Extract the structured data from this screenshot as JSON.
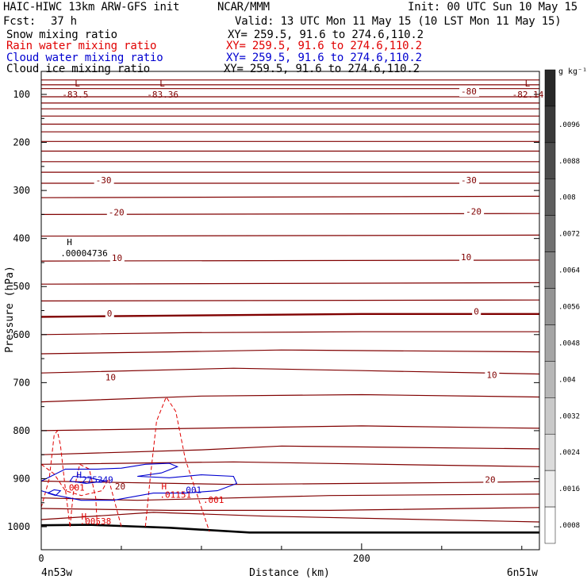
{
  "header": {
    "model": "HAIC-HIWC 13km ARW-GFS init",
    "org": "NCAR/MMM",
    "init": "Init: 00 UTC Sun 10 May 15",
    "fcst_label": "Fcst:",
    "fcst_value": "37 h",
    "valid": "Valid: 13 UTC Mon 11 May 15 (10 LST Mon 11 May 15)",
    "fields": [
      {
        "name": "Snow mixing ratio",
        "xy": "XY= 259.5, 91.6 to 274.6,110.2",
        "color": "#000000"
      },
      {
        "name": "Rain water mixing ratio",
        "xy": "XY= 259.5, 91.6 to 274.6,110.2",
        "color": "#e00000"
      },
      {
        "name": "Cloud water mixing ratio",
        "xy": "XY= 259.5, 91.6 to 274.6,110.2",
        "color": "#0000d0"
      },
      {
        "name": "Cloud ice mixing ratio",
        "xy": "XY= 259.5, 91.6 to 274.6,110.2",
        "color": "#000000"
      }
    ]
  },
  "chart_data": {
    "type": "contour",
    "xlabel": "Distance (km)",
    "ylabel": "Pressure (hPa)",
    "xlim": [
      0,
      311
    ],
    "ylim": [
      1040,
      50
    ],
    "x_ticks": [
      0,
      200
    ],
    "y_ticks": [
      100,
      200,
      300,
      400,
      500,
      600,
      700,
      800,
      900,
      1000
    ],
    "cross_section_start": "4n53w",
    "cross_section_end": "6n51w",
    "colorbar": {
      "unit": "g kg⁻¹",
      "labels": [
        ".0096",
        ".0088",
        ".008",
        ".0072",
        ".0064",
        ".0056",
        ".0048",
        ".004",
        ".0032",
        ".0024",
        ".0016",
        ".0008"
      ]
    },
    "temperature_contours": {
      "color": "#800000",
      "labels": [
        {
          "text": "-80",
          "x": 262,
          "p": 100
        },
        {
          "text": "-30",
          "x": 34,
          "p": 285
        },
        {
          "text": "-30",
          "x": 262,
          "p": 285
        },
        {
          "text": "-20",
          "x": 42,
          "p": 352
        },
        {
          "text": "-20",
          "x": 265,
          "p": 350
        },
        {
          "text": "10",
          "x": 44,
          "p": 447
        },
        {
          "text": "10",
          "x": 262,
          "p": 445
        },
        {
          "text": "0",
          "x": 41,
          "p": 562
        },
        {
          "text": "0",
          "x": 270,
          "p": 558
        },
        {
          "text": "10",
          "x": 40,
          "p": 695
        },
        {
          "text": "10",
          "x": 278,
          "p": 690
        },
        {
          "text": "20",
          "x": 277,
          "p": 908
        }
      ],
      "extrema": [
        {
          "kind": "L",
          "value": "-83.5",
          "x": 13,
          "p": 100
        },
        {
          "kind": "L",
          "value": "-83.36",
          "x": 66,
          "p": 100
        },
        {
          "kind": "L",
          "value": "-82.14",
          "x": 294,
          "p": 100
        }
      ]
    },
    "snow_extremum": {
      "kind": "H",
      "value": ".00004736",
      "x": 10,
      "p": 420
    },
    "rain_labels": [
      {
        "text": "H",
        "x": 75,
        "p": 922
      },
      {
        "text": ".01151",
        "x": 74,
        "p": 940
      },
      {
        "text": ".001",
        "x": 101,
        "p": 950
      },
      {
        "text": ".001",
        "x": 14,
        "p": 925
      },
      {
        "text": "H",
        "x": 25,
        "p": 985
      },
      {
        "text": ".00538",
        "x": 24,
        "p": 995
      }
    ],
    "cloud_labels": [
      {
        "text": "H",
        "x": 22,
        "p": 898
      },
      {
        "text": ".275249",
        "x": 22,
        "p": 908
      },
      {
        "text": ".001",
        "x": 87,
        "p": 930
      },
      {
        "text": "20",
        "x": 46,
        "p": 922
      }
    ]
  }
}
